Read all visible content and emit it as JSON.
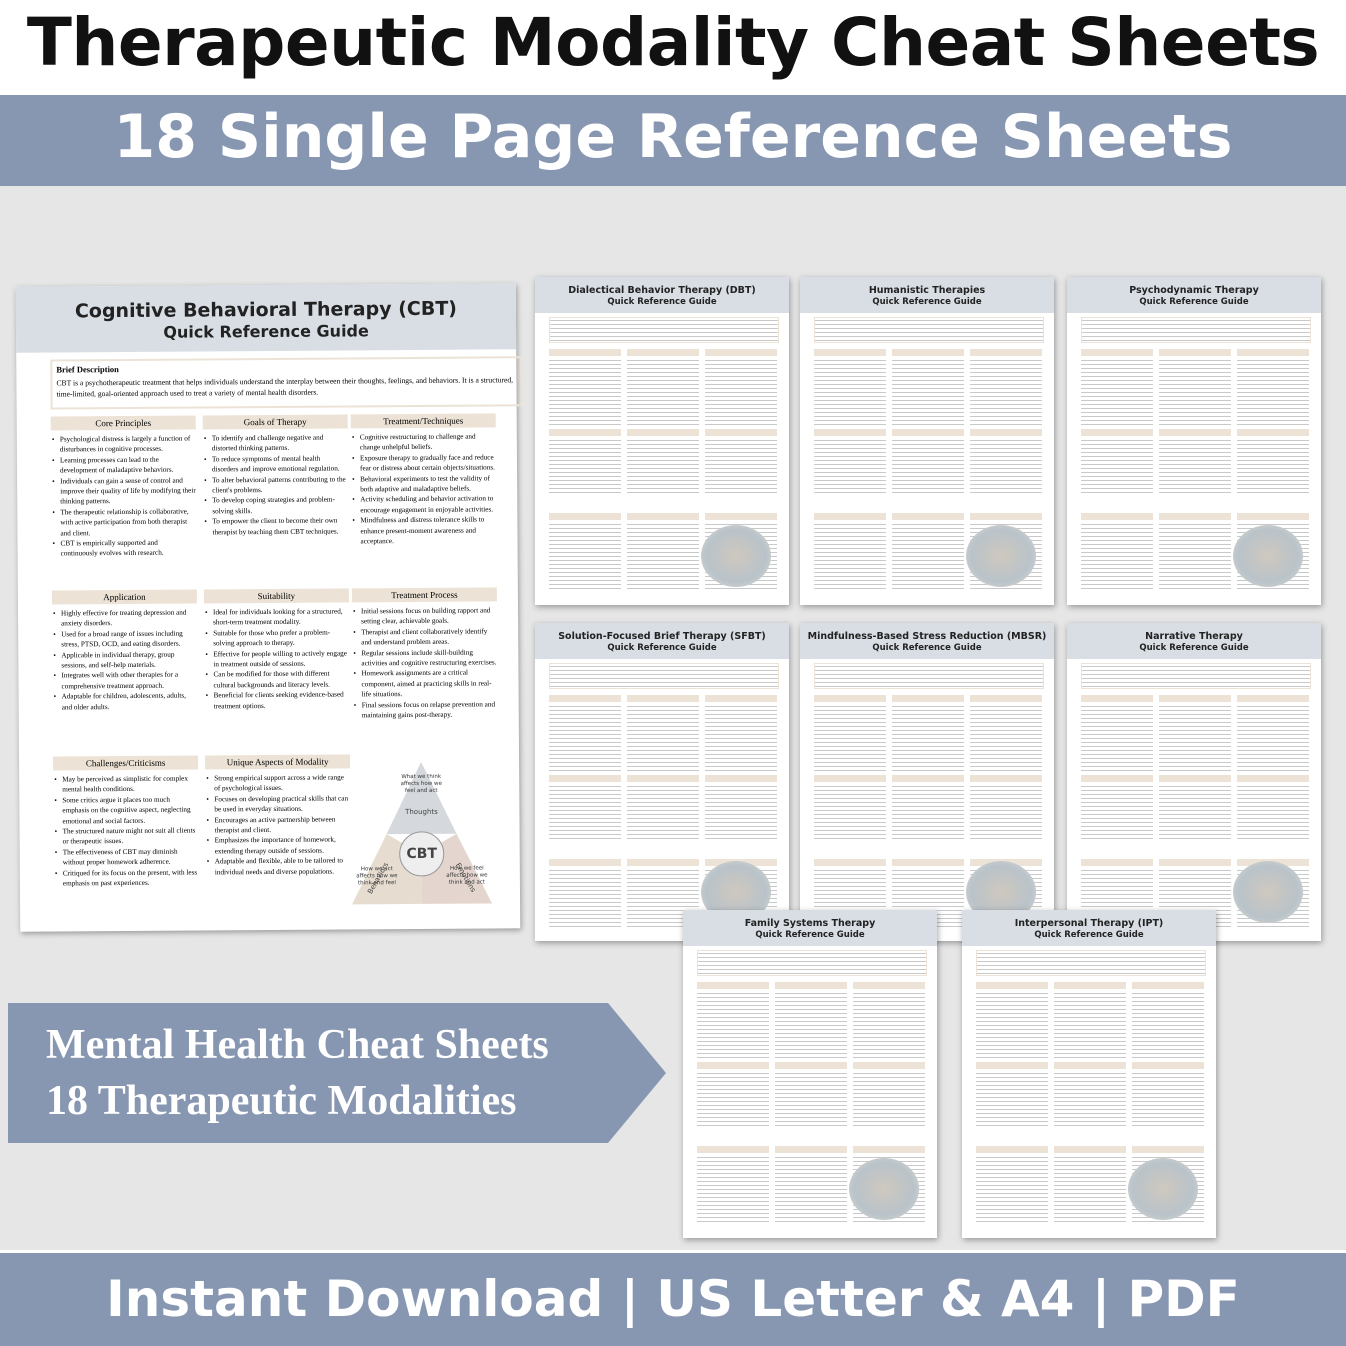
{
  "header": {
    "title": "Therapeutic Modality Cheat Sheets",
    "subtitle": "18 Single Page Reference Sheets"
  },
  "featured_sheet": {
    "title": "Cognitive Behavioral Therapy (CBT)",
    "subtitle": "Quick Reference Guide",
    "brief_heading": "Brief Description",
    "brief_text": "CBT is a psychotherapeutic treatment that helps individuals understand the interplay between their thoughts, feelings, and behaviors. It is a structured, time-limited, goal-oriented approach used to treat a variety of mental health disorders.",
    "sections": [
      {
        "heading": "Core Principles",
        "items": [
          "Psychological distress is largely a function of disturbances in cognitive processes.",
          "Learning processes can lead to the development of maladaptive behaviors.",
          "Individuals can gain a sense of control and improve their quality of life by modifying their thinking patterns.",
          "The therapeutic relationship is collaborative, with active participation from both therapist and client.",
          "CBT is empirically supported and continuously evolves with research."
        ]
      },
      {
        "heading": "Goals of Therapy",
        "items": [
          "To identify and challenge negative and distorted thinking patterns.",
          "To reduce symptoms of mental health disorders and improve emotional regulation.",
          "To alter behavioral patterns contributing to the client's problems.",
          "To develop coping strategies and problem-solving skills.",
          "To empower the client to become their own therapist by teaching them CBT techniques."
        ]
      },
      {
        "heading": "Treatment/Techniques",
        "items": [
          "Cognitive restructuring to challenge and change unhelpful beliefs.",
          "Exposure therapy to gradually face and reduce fear or distress about certain objects/situations.",
          "Behavioral experiments to test the validity of both adaptive and maladaptive beliefs.",
          "Activity scheduling and behavior activation to encourage engagement in enjoyable activities.",
          "Mindfulness and distress tolerance skills to enhance present-moment awareness and acceptance."
        ]
      },
      {
        "heading": "Application",
        "items": [
          "Highly effective for treating depression and anxiety disorders.",
          "Used for a broad range of issues including stress, PTSD, OCD, and eating disorders.",
          "Applicable in individual therapy, group sessions, and self-help materials.",
          "Integrates well with other therapies for a comprehensive treatment approach.",
          "Adaptable for children, adolescents, adults, and older adults."
        ]
      },
      {
        "heading": "Suitability",
        "items": [
          "Ideal for individuals looking for a structured, short-term treatment modality.",
          "Suitable for those who prefer a problem-solving approach to therapy.",
          "Effective for people willing to actively engage in treatment outside of sessions.",
          "Can be modified for those with different cultural backgrounds and literacy levels.",
          "Beneficial for clients seeking evidence-based treatment options."
        ]
      },
      {
        "heading": "Treatment Process",
        "items": [
          "Initial sessions focus on building rapport and setting clear, achievable goals.",
          "Therapist and client collaboratively identify and understand problem areas.",
          "Regular sessions include skill-building activities and cognitive restructuring exercises.",
          "Homework assignments are a critical component, aimed at practicing skills in real-life situations.",
          "Final sessions focus on relapse prevention and maintaining gains post-therapy."
        ]
      },
      {
        "heading": "Challenges/Criticisms",
        "items": [
          "May be perceived as simplistic for complex mental health conditions.",
          "Some critics argue it places too much emphasis on the cognitive aspect, neglecting emotional and social factors.",
          "The structured nature might not suit all clients or therapeutic issues.",
          "The effectiveness of CBT may diminish without proper homework adherence.",
          "Critiqued for its focus on the present, with less emphasis on past experiences."
        ]
      },
      {
        "heading": "Unique Aspects of Modality",
        "items": [
          "Strong empirical support across a wide range of psychological issues.",
          "Focuses on developing practical skills that can be used in everyday situations.",
          "Encourages an active partnership between therapist and client.",
          "Emphasizes the importance of homework, extending therapy outside of sessions.",
          "Adaptable and flexible, able to be tailored to individual needs and diverse populations."
        ]
      }
    ],
    "diagram": {
      "center": "CBT",
      "top": "Thoughts",
      "left": "Behaviors",
      "right": "Emotions",
      "note_top": "What we think affects how we feel and act",
      "note_left": "How we act affects how we think and feel",
      "note_right": "How we feel affects how we think and act"
    }
  },
  "sheets": [
    {
      "title": "Dialectical Behavior Therapy (DBT)",
      "subtitle": "Quick Reference Guide"
    },
    {
      "title": "Humanistic Therapies",
      "subtitle": "Quick Reference Guide"
    },
    {
      "title": "Psychodynamic Therapy",
      "subtitle": "Quick Reference Guide"
    },
    {
      "title": "Solution-Focused Brief Therapy (SFBT)",
      "subtitle": "Quick Reference Guide"
    },
    {
      "title": "Mindfulness-Based Stress Reduction (MBSR)",
      "subtitle": "Quick Reference Guide"
    },
    {
      "title": "Narrative Therapy",
      "subtitle": "Quick Reference Guide"
    },
    {
      "title": "Family Systems Therapy",
      "subtitle": "Quick Reference Guide"
    },
    {
      "title": "Interpersonal Therapy (IPT)",
      "subtitle": "Quick Reference Guide"
    }
  ],
  "banner": {
    "lines": [
      "Mental Health Cheat Sheets",
      "18 Therapeutic Modalities"
    ]
  },
  "footer": {
    "text": "Instant Download | US Letter & A4 | PDF"
  }
}
